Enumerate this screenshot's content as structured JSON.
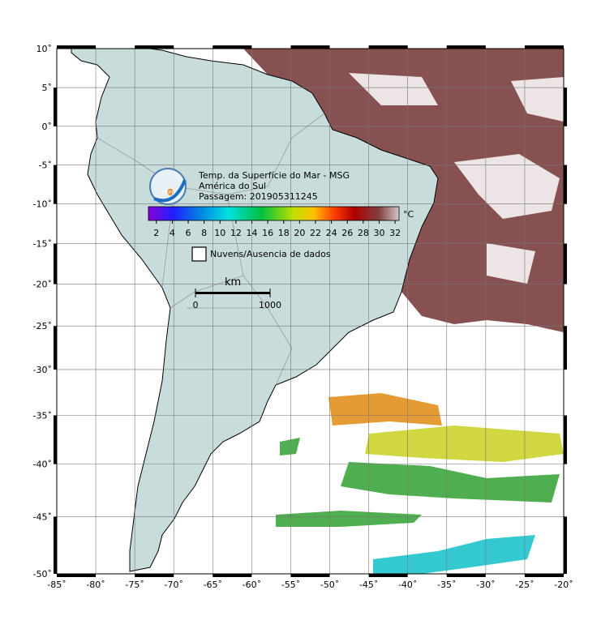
{
  "map": {
    "title": "Temp. da Superfície do Mar - MSG",
    "region": "América do Sul",
    "pass": "Passagem: 201905311245",
    "logo": "INPE",
    "xlim": [
      -85,
      -20
    ],
    "ylim": [
      -50,
      10
    ],
    "xticks": [
      {
        "value": -85,
        "label": "-85˚"
      },
      {
        "value": -80,
        "label": "-80˚"
      },
      {
        "value": -75,
        "label": "-75˚"
      },
      {
        "value": -70,
        "label": "-70˚"
      },
      {
        "value": -65,
        "label": "-65˚"
      },
      {
        "value": -60,
        "label": "-60˚"
      },
      {
        "value": -55,
        "label": "-55˚"
      },
      {
        "value": -50,
        "label": "-50˚"
      },
      {
        "value": -45,
        "label": "-45˚"
      },
      {
        "value": -40,
        "label": "-40˚"
      },
      {
        "value": -35,
        "label": "-35˚"
      },
      {
        "value": -30,
        "label": "-30˚"
      },
      {
        "value": -25,
        "label": "-25˚"
      },
      {
        "value": -20,
        "label": "-20˚"
      }
    ],
    "yticks": [
      {
        "value": 10,
        "label": "10˚"
      },
      {
        "value": 5,
        "label": "5˚"
      },
      {
        "value": 0,
        "label": "0˚"
      },
      {
        "value": -5,
        "label": "-5˚"
      },
      {
        "value": -10,
        "label": "-10˚"
      },
      {
        "value": -15,
        "label": "-15˚"
      },
      {
        "value": -20,
        "label": "-20˚"
      },
      {
        "value": -25,
        "label": "-25˚"
      },
      {
        "value": -30,
        "label": "-30˚"
      },
      {
        "value": -35,
        "label": "-35˚"
      },
      {
        "value": -40,
        "label": "-40˚"
      },
      {
        "value": -45,
        "label": "-45˚"
      },
      {
        "value": -50,
        "label": "-50˚"
      }
    ],
    "colorbar": {
      "lim": [
        1,
        32.5
      ],
      "ticks": [
        2,
        4,
        6,
        8,
        10,
        12,
        14,
        16,
        18,
        20,
        22,
        24,
        26,
        28,
        30,
        32
      ],
      "unit": "°C"
    },
    "legend": "Nuvens/Ausencia de dados",
    "scale": {
      "unit": "km",
      "ticks": [
        0,
        1000
      ]
    }
  }
}
